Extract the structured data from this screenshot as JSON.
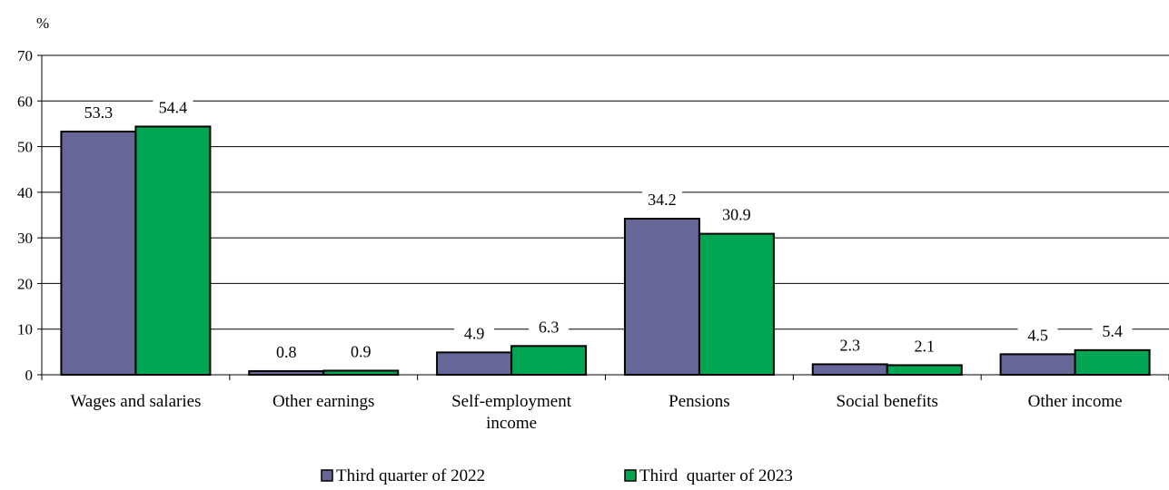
{
  "chart_data": {
    "type": "bar",
    "unit_label": "%",
    "categories": [
      [
        "Wages and salaries"
      ],
      [
        "Other earnings"
      ],
      [
        "Self-employment",
        "income"
      ],
      [
        "Pensions"
      ],
      [
        "Social benefits"
      ],
      [
        "Other income"
      ]
    ],
    "series": [
      {
        "name": "Third quarter of 2022",
        "color": "#666699",
        "values": [
          53.3,
          0.8,
          4.9,
          34.2,
          2.3,
          4.5
        ]
      },
      {
        "name": "Third  quarter of 2023",
        "color": "#00A651",
        "values": [
          54.4,
          0.9,
          6.3,
          30.9,
          2.1,
          5.4
        ]
      }
    ],
    "ylim": [
      0,
      70
    ],
    "yticks": [
      0,
      10,
      20,
      30,
      40,
      50,
      60,
      70
    ],
    "grid": true,
    "legend_position": "bottom-center"
  }
}
